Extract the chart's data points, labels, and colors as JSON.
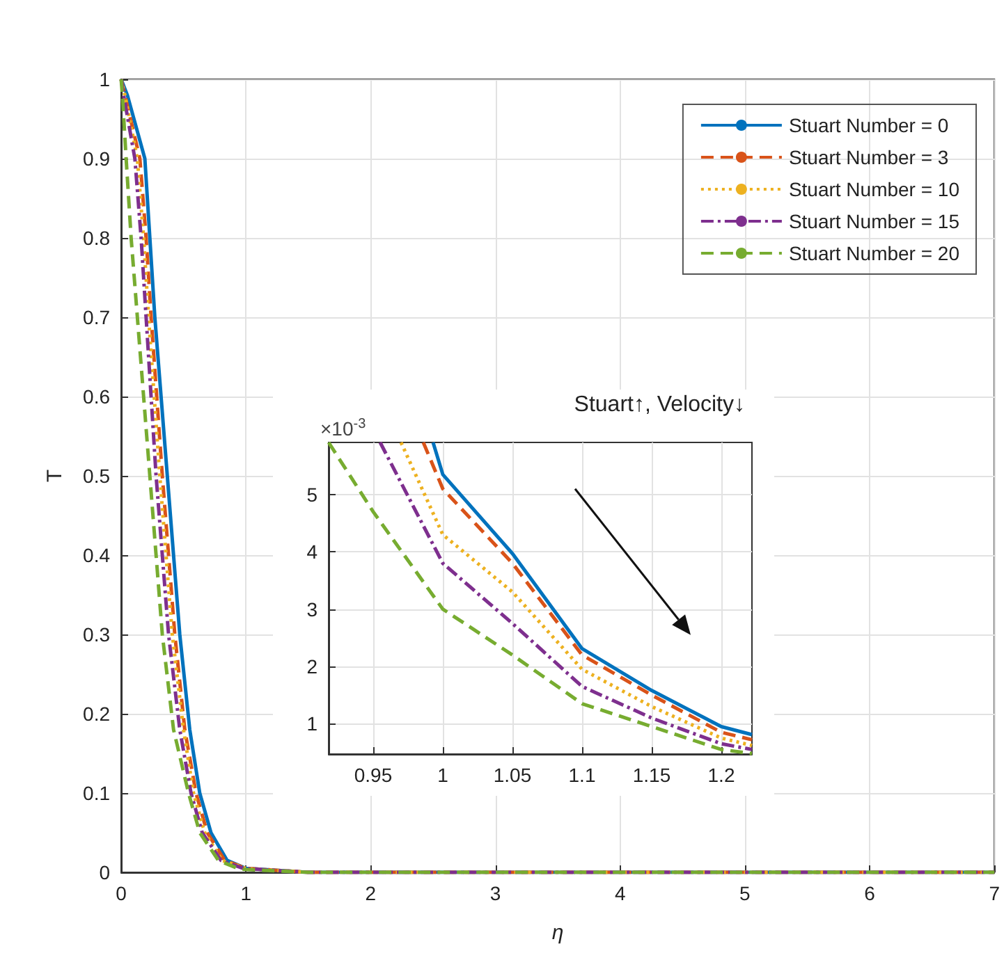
{
  "chart_data": [
    {
      "type": "line",
      "xlabel": "η",
      "ylabel": "T",
      "xlim": [
        0,
        7
      ],
      "xticks": [
        0,
        1,
        2,
        3,
        4,
        5,
        6,
        7
      ],
      "ylim": [
        0,
        1
      ],
      "yticks": [
        0,
        0.1,
        0.2,
        0.3,
        0.4,
        0.5,
        0.6,
        0.7,
        0.8,
        0.9,
        1
      ],
      "grid": true,
      "legend": "top right",
      "marker": "none",
      "series": [
        {
          "name": "Stuart Number = 0",
          "color": "#0072bd",
          "line_style": "solid",
          "x": [
            0,
            0.05,
            0.19,
            0.23,
            0.27,
            0.37,
            0.47,
            0.55,
            0.63,
            0.72,
            0.85,
            1,
            1.5,
            7
          ],
          "values": [
            1,
            0.98,
            0.9,
            0.8,
            0.7,
            0.5,
            0.3,
            0.18,
            0.1,
            0.05,
            0.015,
            0.005,
            0,
            0
          ]
        },
        {
          "name": "Stuart Number = 3",
          "color": "#d95319",
          "line_style": "dashed",
          "x": [
            0,
            0.03,
            0.15,
            0.2,
            0.24,
            0.33,
            0.43,
            0.51,
            0.6,
            0.69,
            0.83,
            1,
            1.5,
            7
          ],
          "values": [
            1,
            0.98,
            0.9,
            0.8,
            0.7,
            0.5,
            0.3,
            0.18,
            0.1,
            0.05,
            0.015,
            0.005,
            0,
            0
          ]
        },
        {
          "name": "Stuart Number = 10",
          "color": "#edb120",
          "line_style": "dotted",
          "x": [
            0,
            0.03,
            0.13,
            0.18,
            0.22,
            0.31,
            0.41,
            0.5,
            0.58,
            0.67,
            0.81,
            1,
            1.5,
            7
          ],
          "values": [
            1,
            0.98,
            0.9,
            0.8,
            0.7,
            0.5,
            0.3,
            0.18,
            0.1,
            0.05,
            0.015,
            0.005,
            0,
            0
          ]
        },
        {
          "name": "Stuart Number = 15",
          "color": "#7e2f8e",
          "line_style": "dashdot",
          "x": [
            0,
            0.02,
            0.11,
            0.16,
            0.2,
            0.28,
            0.38,
            0.47,
            0.56,
            0.65,
            0.8,
            0.98,
            1.5,
            7
          ],
          "values": [
            1,
            0.98,
            0.9,
            0.8,
            0.7,
            0.5,
            0.3,
            0.18,
            0.1,
            0.05,
            0.015,
            0.005,
            0,
            0
          ]
        },
        {
          "name": "Stuart Number = 20",
          "color": "#77ac30",
          "line_style": "dashed",
          "x": [
            0,
            0.01,
            0.04,
            0.08,
            0.13,
            0.23,
            0.33,
            0.42,
            0.54,
            0.63,
            0.78,
            0.95,
            1.5,
            7
          ],
          "values": [
            1,
            0.98,
            0.9,
            0.8,
            0.7,
            0.5,
            0.3,
            0.18,
            0.1,
            0.05,
            0.015,
            0.004,
            0,
            0
          ]
        }
      ]
    },
    {
      "type": "line",
      "title": "Stuart↑, Velocity↓",
      "annotations": [
        "×10$^{-3}$"
      ],
      "xlim": [
        0.918,
        1.222
      ],
      "xticks": [
        0.95,
        1,
        1.05,
        1.1,
        1.15,
        1.2
      ],
      "ylim": [
        0.47,
        5.91
      ],
      "yticks": [
        1,
        2,
        3,
        4,
        5
      ],
      "grid": true,
      "marker": "none",
      "series": [
        {
          "color": "#0072bd",
          "line_style": "solid",
          "x": [
            0.993,
            1,
            1.05,
            1.1,
            1.15,
            1.2,
            1.222
          ],
          "values": [
            5.91,
            5.35,
            3.97,
            2.31,
            1.58,
            0.95,
            0.81
          ]
        },
        {
          "color": "#d95319",
          "line_style": "dashed",
          "x": [
            0.986,
            1,
            1.05,
            1.1,
            1.15,
            1.2,
            1.222
          ],
          "values": [
            5.91,
            5.1,
            3.8,
            2.2,
            1.5,
            0.85,
            0.72
          ]
        },
        {
          "color": "#edb120",
          "line_style": "dotted",
          "x": [
            0.97,
            1,
            1.05,
            1.1,
            1.15,
            1.2,
            1.222
          ],
          "values": [
            5.91,
            4.3,
            3.3,
            1.95,
            1.3,
            0.75,
            0.62
          ]
        },
        {
          "color": "#7e2f8e",
          "line_style": "dashdot",
          "x": [
            0.955,
            1,
            1.05,
            1.1,
            1.15,
            1.2,
            1.222
          ],
          "values": [
            5.91,
            3.8,
            2.75,
            1.65,
            1.1,
            0.65,
            0.55
          ]
        },
        {
          "color": "#77ac30",
          "line_style": "dashed",
          "x": [
            0.918,
            0.95,
            1,
            1.05,
            1.1,
            1.15,
            1.2,
            1.222
          ],
          "values": [
            5.91,
            4.7,
            3.0,
            2.2,
            1.35,
            0.95,
            0.55,
            0.48
          ]
        }
      ]
    }
  ]
}
